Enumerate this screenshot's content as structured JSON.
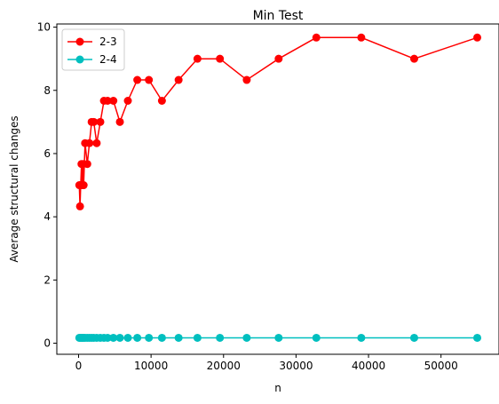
{
  "chart_data": {
    "type": "line",
    "title": "Min Test",
    "xlabel": "n",
    "ylabel": "Average structural changes",
    "xlim": [
      -3000,
      58000
    ],
    "ylim": [
      -0.35,
      10.1
    ],
    "xticks": [
      0,
      10000,
      20000,
      30000,
      40000,
      50000
    ],
    "yticks": [
      0,
      2,
      4,
      6,
      8,
      10
    ],
    "grid": false,
    "legend_position": "top-left",
    "series": [
      {
        "name": "2-3",
        "color": "#ff0000",
        "marker": "circle",
        "x": [
          100,
          200,
          300,
          400,
          500,
          600,
          700,
          900,
          1200,
          1500,
          1800,
          2100,
          2500,
          3000,
          3500,
          4000,
          4800,
          5700,
          6800,
          8100,
          9700,
          11500,
          13800,
          16400,
          19500,
          23200,
          27600,
          32800,
          39000,
          46300,
          55000
        ],
        "y": [
          5.0,
          4.33,
          5.0,
          5.67,
          5.0,
          5.67,
          5.0,
          6.33,
          5.67,
          6.33,
          7.0,
          7.0,
          6.33,
          7.0,
          7.67,
          7.67,
          7.67,
          7.0,
          7.67,
          8.33,
          8.33,
          7.67,
          8.33,
          9.0,
          9.0,
          8.33,
          9.0,
          9.67,
          9.67,
          9.0,
          9.67
        ]
      },
      {
        "name": "2-4",
        "color": "#00bfbf",
        "marker": "circle",
        "x": [
          100,
          200,
          300,
          400,
          500,
          600,
          700,
          900,
          1200,
          1500,
          1800,
          2100,
          2500,
          3000,
          3500,
          4000,
          4800,
          5700,
          6800,
          8100,
          9700,
          11500,
          13800,
          16400,
          19500,
          23200,
          27600,
          32800,
          39000,
          46300,
          55000
        ],
        "y": [
          0.17,
          0.17,
          0.17,
          0.17,
          0.17,
          0.17,
          0.17,
          0.17,
          0.17,
          0.17,
          0.17,
          0.17,
          0.17,
          0.17,
          0.17,
          0.17,
          0.17,
          0.17,
          0.17,
          0.17,
          0.17,
          0.17,
          0.17,
          0.17,
          0.17,
          0.17,
          0.17,
          0.17,
          0.17,
          0.17,
          0.17
        ]
      }
    ]
  }
}
